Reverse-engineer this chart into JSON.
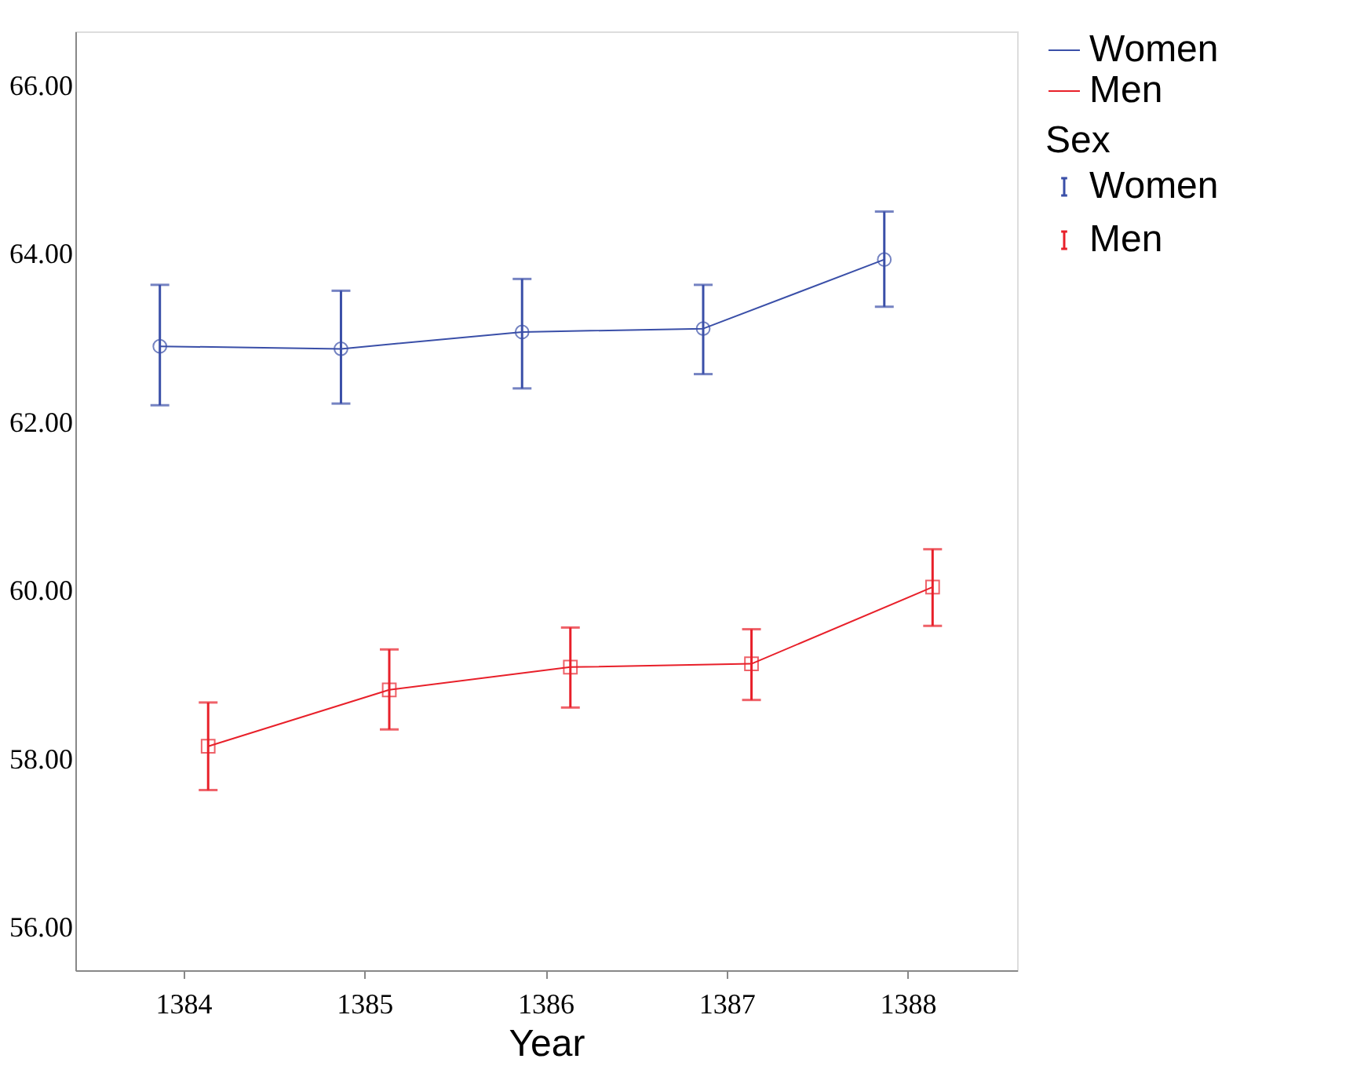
{
  "chart_data": {
    "type": "line",
    "xlabel": "Year",
    "legend_title": "Sex",
    "legend": "right",
    "grid": false,
    "line_style": "solid",
    "categories": [
      "1384",
      "1385",
      "1386",
      "1387",
      "1388"
    ],
    "ylim": [
      55.5,
      66.65
    ],
    "yticks": [
      {
        "value": 56,
        "label": "56.00"
      },
      {
        "value": 58,
        "label": "58.00"
      },
      {
        "value": 60,
        "label": "60.00"
      },
      {
        "value": 62,
        "label": "62.00"
      },
      {
        "value": 64,
        "label": "64.00"
      },
      {
        "value": 66,
        "label": "66.00"
      }
    ],
    "series": [
      {
        "name": "Women",
        "color": "#3a4fa8",
        "marker": "circle",
        "values": [
          62.91,
          62.88,
          63.08,
          63.12,
          63.94
        ],
        "errors": [
          [
            62.21,
            63.64
          ],
          [
            62.23,
            63.57
          ],
          [
            62.41,
            63.71
          ],
          [
            62.58,
            63.64
          ],
          [
            63.38,
            64.51
          ]
        ]
      },
      {
        "name": "Men",
        "color": "#e8202a",
        "marker": "square",
        "values": [
          58.16,
          58.83,
          59.1,
          59.14,
          60.05
        ],
        "errors": [
          [
            57.64,
            58.68
          ],
          [
            58.36,
            59.31
          ],
          [
            58.62,
            59.57
          ],
          [
            58.71,
            59.55
          ],
          [
            59.59,
            60.5
          ]
        ]
      }
    ]
  }
}
